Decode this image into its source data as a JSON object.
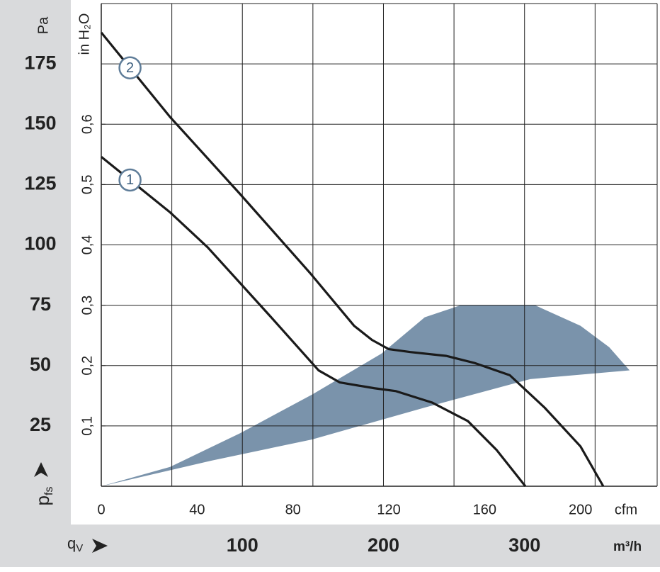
{
  "chart_data": {
    "type": "line",
    "xlabel": "cfm",
    "ylabel": "Pa",
    "y2label": "in H₂O",
    "x2label": "m³/h",
    "y_symbol": {
      "base": "p",
      "sub": "fs"
    },
    "x2_symbol": {
      "base": "q",
      "sub": "V"
    },
    "xlim": [
      0,
      232
    ],
    "xticks": [
      0,
      40,
      80,
      120,
      160,
      200
    ],
    "ylim": [
      0,
      200
    ],
    "yticks": [
      25,
      50,
      75,
      100,
      125,
      150,
      175
    ],
    "y2lim": [
      0,
      0.8
    ],
    "y2ticks": [
      {
        "value": 0.1,
        "label": "0,1"
      },
      {
        "value": 0.2,
        "label": "0,2"
      },
      {
        "value": 0.3,
        "label": "0,3"
      },
      {
        "value": 0.4,
        "label": "0,4"
      },
      {
        "value": 0.5,
        "label": "0,5"
      },
      {
        "value": 0.6,
        "label": "0,6"
      }
    ],
    "x2lim": [
      0,
      394
    ],
    "x2ticks": [
      100,
      200,
      300
    ],
    "x2grid": [
      50,
      100,
      150,
      200,
      250,
      300,
      350
    ],
    "grid": true,
    "series": [
      {
        "name": "2",
        "color": "#1a1a1a",
        "x": [
          0,
          28.7,
          58,
          87,
          105.5,
          113,
          120,
          129,
          144,
          156,
          170.5,
          185,
          200,
          209.5
        ],
        "values": [
          188,
          153,
          121,
          88.5,
          66.5,
          60.6,
          56.8,
          55.6,
          54,
          51,
          46,
          32.6,
          16.5,
          0
        ]
      },
      {
        "name": "1",
        "color": "#1a1a1a",
        "x": [
          0,
          28.7,
          44.4,
          70,
          90.7,
          99.6,
          114,
          123,
          138,
          153,
          165,
          177
        ],
        "values": [
          136.5,
          113.5,
          99,
          71,
          48,
          43,
          40.6,
          39.4,
          34.7,
          27,
          15,
          0
        ]
      }
    ],
    "region": {
      "color": "#7a93ab",
      "x": [
        0,
        46,
        88,
        135,
        179,
        220.5,
        212,
        200,
        181,
        150,
        135,
        117,
        88,
        58,
        28.7
      ],
      "values": [
        0,
        10.6,
        19.4,
        32.6,
        44.4,
        48,
        57.6,
        66.5,
        75,
        75,
        70,
        55,
        38,
        22,
        8
      ]
    }
  }
}
